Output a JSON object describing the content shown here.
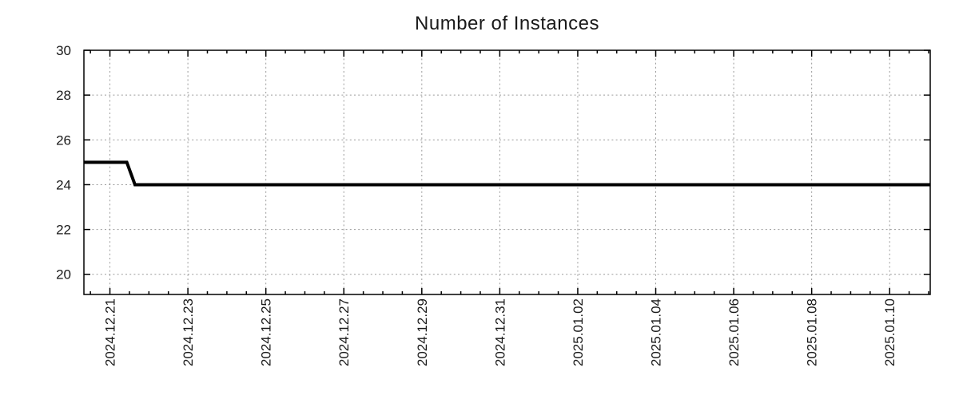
{
  "colors": {
    "background": "#ffffff",
    "line": "#000000",
    "axis": "#000000",
    "grid": "#9a9a9a",
    "text": "#1a1a1a"
  },
  "chart_data": {
    "type": "line",
    "title": "Number of Instances",
    "xlabel": "",
    "ylabel": "",
    "grid": true,
    "legend": "none",
    "x_axis": {
      "kind": "time",
      "range_days": [
        0,
        21.708
      ],
      "major_tick_labels": [
        "2024.12.21",
        "2024.12.23",
        "2024.12.25",
        "2024.12.27",
        "2024.12.29",
        "2024.12.31",
        "2025.01.02",
        "2025.01.04",
        "2025.01.06",
        "2025.01.08",
        "2025.01.10"
      ],
      "major_tick_offsets_days": [
        0.667,
        2.667,
        4.667,
        6.667,
        8.667,
        10.667,
        12.667,
        14.667,
        16.667,
        18.667,
        20.667
      ],
      "minor_tick_step_days": 0.5,
      "minor_tick_phase_days": 0.167,
      "label_rotation_deg": -90
    },
    "y_axis": {
      "range": [
        19.1,
        30
      ],
      "tick_values": [
        20,
        22,
        24,
        26,
        28,
        30
      ],
      "tick_labels": [
        "20",
        "22",
        "24",
        "26",
        "28",
        "30"
      ]
    },
    "series": [
      {
        "name": "instances",
        "color": "#000000",
        "stroke_width": 4,
        "points": [
          {
            "t_days": 0.0,
            "value": 25
          },
          {
            "t_days": 1.1,
            "value": 25
          },
          {
            "t_days": 1.31,
            "value": 24
          },
          {
            "t_days": 21.708,
            "value": 24
          }
        ],
        "note": "Value 25 until ~2024.12.21 midday, then 24 through end of range"
      }
    ]
  }
}
